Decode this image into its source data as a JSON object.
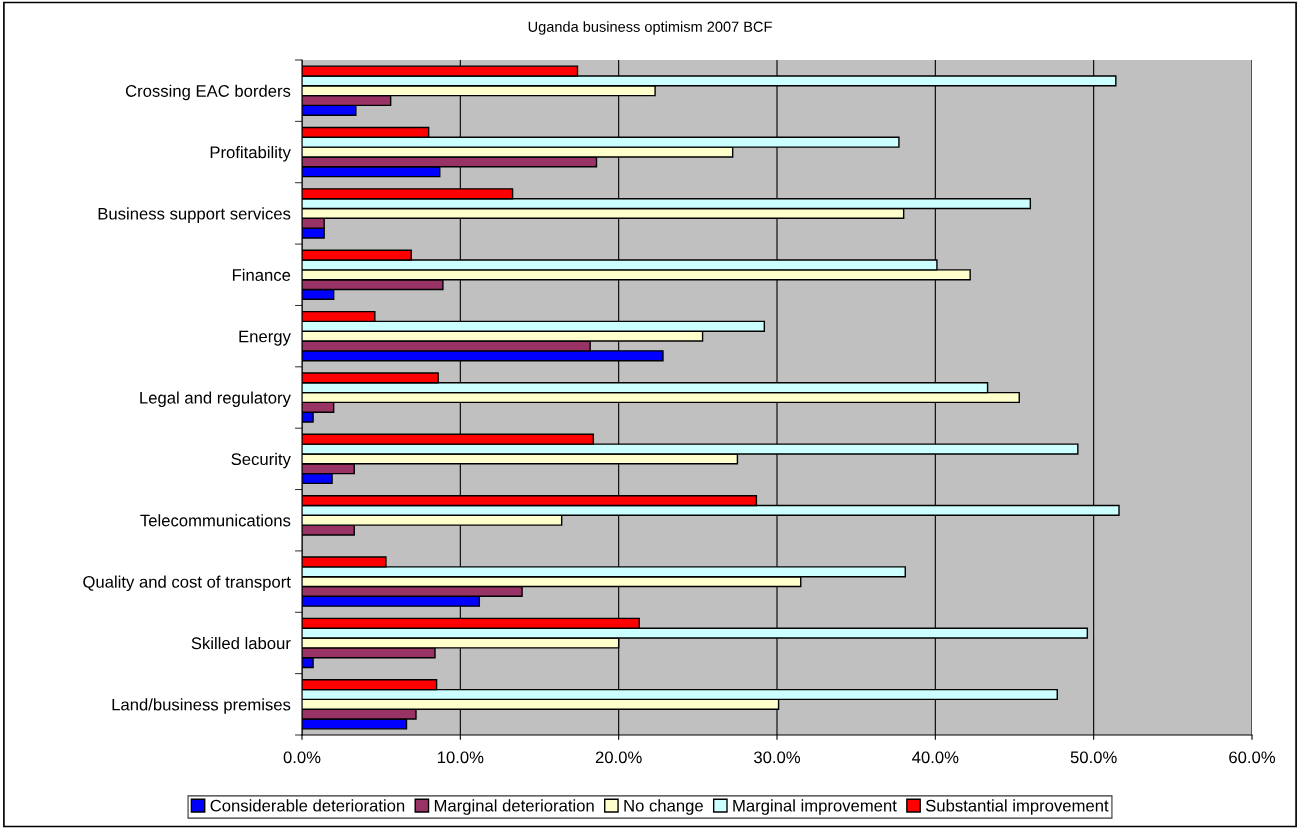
{
  "chart_data": {
    "type": "bar",
    "orientation": "horizontal",
    "title": "Uganda business optimism 2007 BCF",
    "categories": [
      "Crossing EAC borders",
      "Profitability",
      "Business support services",
      "Finance",
      "Energy",
      "Legal and regulatory",
      "Security",
      "Telecommunications",
      "Quality and cost of transport",
      "Skilled labour",
      "Land/business premises"
    ],
    "series": [
      {
        "name": "Considerable deterioration",
        "color": "#0000ff",
        "values": [
          3.4,
          8.7,
          1.4,
          2.0,
          22.8,
          0.7,
          1.9,
          null,
          11.2,
          0.7,
          6.6
        ]
      },
      {
        "name": "Marginal deterioration",
        "color": "#993366",
        "values": [
          5.6,
          18.6,
          1.4,
          8.9,
          18.2,
          2.0,
          3.3,
          3.3,
          13.9,
          8.4,
          7.2
        ]
      },
      {
        "name": "No change",
        "color": "#ffffcc",
        "values": [
          22.3,
          27.2,
          38.0,
          42.2,
          25.3,
          45.3,
          27.5,
          16.4,
          31.5,
          20.0,
          30.1
        ]
      },
      {
        "name": "Marginal improvement",
        "color": "#ccffff",
        "values": [
          51.4,
          37.7,
          46.0,
          40.1,
          29.2,
          43.3,
          49.0,
          51.6,
          38.1,
          49.6,
          47.7
        ]
      },
      {
        "name": "Substantial improvement",
        "color": "#ff0000",
        "values": [
          17.4,
          8.0,
          13.3,
          6.9,
          4.6,
          8.6,
          18.4,
          28.7,
          5.3,
          21.3,
          8.5
        ]
      }
    ],
    "xlim": [
      0,
      60
    ],
    "xticks": [
      {
        "value": 0,
        "label": "0.0%"
      },
      {
        "value": 10,
        "label": "10.0%"
      },
      {
        "value": 20,
        "label": "20.0%"
      },
      {
        "value": 30,
        "label": "30.0%"
      },
      {
        "value": 40,
        "label": "40.0%"
      },
      {
        "value": 50,
        "label": "50.0%"
      },
      {
        "value": 60,
        "label": "60.0%"
      }
    ],
    "grid": "x",
    "legend": "bottom"
  }
}
